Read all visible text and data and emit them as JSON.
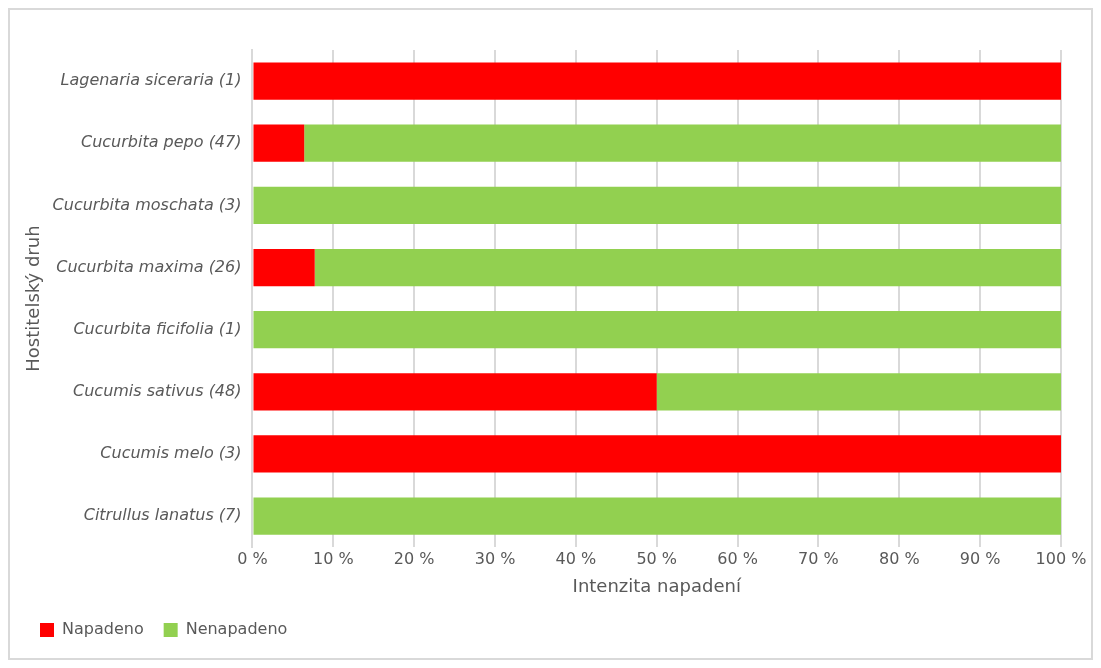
{
  "chart_data": {
    "type": "bar",
    "orientation": "horizontal",
    "stacked": true,
    "xlabel": "Intenzita napadení",
    "ylabel": "Hostitelský druh",
    "categories": [
      "Lagenaria siceraria (1)",
      "Cucurbita pepo (47)",
      "Cucurbita moschata (3)",
      "Cucurbita maxima (26)",
      "Cucurbita ficifolia (1)",
      "Cucumis sativus (48)",
      "Cucumis melo (3)",
      "Citrullus lanatus (7)"
    ],
    "series": [
      {
        "name": "Napadeno",
        "color": "#ff0000",
        "values": [
          100,
          6.4,
          0,
          7.7,
          0,
          50,
          100,
          0
        ]
      },
      {
        "name": "Nenapadeno",
        "color": "#92d050",
        "values": [
          0,
          93.6,
          100,
          92.3,
          100,
          50,
          0,
          100
        ]
      }
    ],
    "xlim": [
      0,
      100
    ],
    "xticks": [
      {
        "value": 0,
        "label": "0 %"
      },
      {
        "value": 10,
        "label": "10 %"
      },
      {
        "value": 20,
        "label": "20 %"
      },
      {
        "value": 30,
        "label": "30 %"
      },
      {
        "value": 40,
        "label": "40 %"
      },
      {
        "value": 50,
        "label": "50 %"
      },
      {
        "value": 60,
        "label": "60 %"
      },
      {
        "value": 70,
        "label": "70 %"
      },
      {
        "value": 80,
        "label": "80 %"
      },
      {
        "value": 90,
        "label": "90 %"
      },
      {
        "value": 100,
        "label": "100 %"
      }
    ],
    "grid": "x",
    "legend": "bottom left"
  }
}
